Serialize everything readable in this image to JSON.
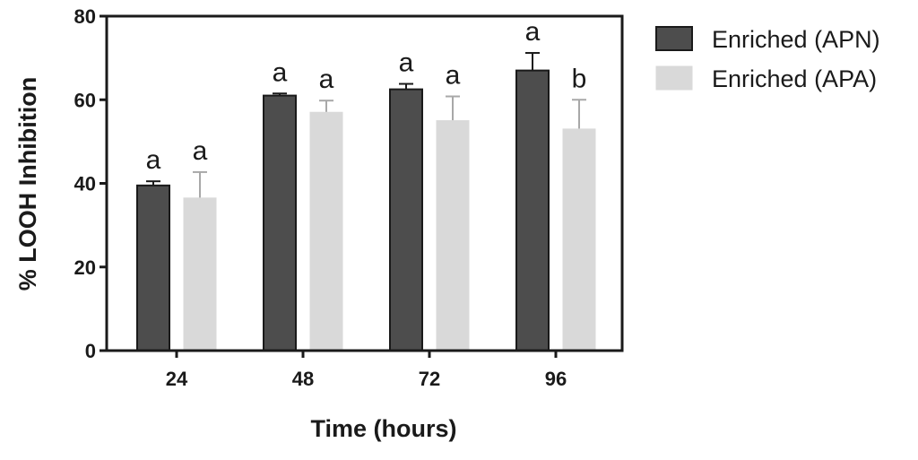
{
  "chart_data": {
    "type": "bar",
    "title": "",
    "xlabel": "Time (hours)",
    "ylabel": "% LOOH Inhibition",
    "categories": [
      "24",
      "48",
      "72",
      "96"
    ],
    "ylim": [
      0,
      80
    ],
    "yticks": [
      0,
      20,
      40,
      60,
      80
    ],
    "grid": false,
    "legend_position": "top-right",
    "series": [
      {
        "name": "Enriched (APN)",
        "color": "#4d4d4d",
        "values": [
          39.5,
          61.0,
          62.5,
          67.0
        ],
        "errors": [
          1.0,
          0.5,
          1.3,
          4.2
        ],
        "significance": [
          "a",
          "a",
          "a",
          "a"
        ]
      },
      {
        "name": "Enriched (APA)",
        "color": "#d9d9d9",
        "values": [
          36.5,
          57.0,
          55.0,
          53.0
        ],
        "errors": [
          6.2,
          2.8,
          5.8,
          7.0
        ],
        "significance": [
          "a",
          "a",
          "a",
          "b"
        ]
      }
    ]
  }
}
